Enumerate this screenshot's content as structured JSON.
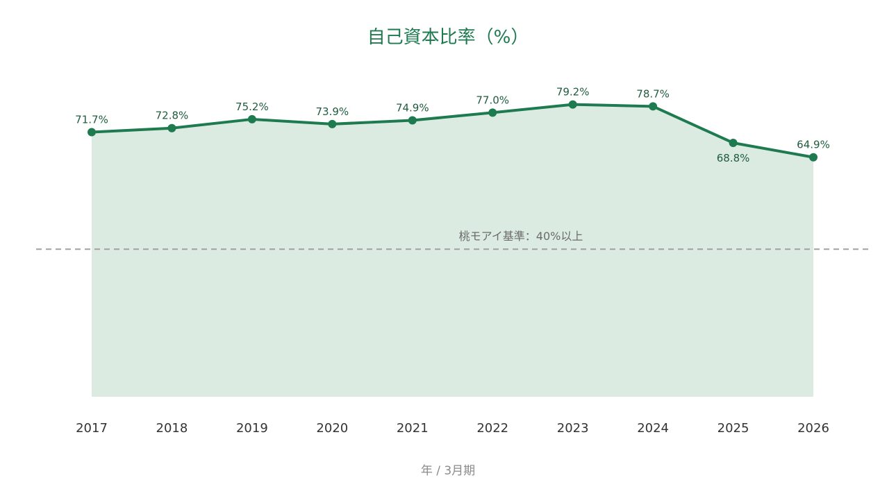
{
  "chart_data": {
    "type": "area",
    "title": "自己資本比率（%）",
    "xlabel": "年 / 3月期",
    "ylabel": "",
    "categories": [
      "2017",
      "2018",
      "2019",
      "2020",
      "2021",
      "2022",
      "2023",
      "2024",
      "2025",
      "2026"
    ],
    "series": [
      {
        "values": [
          71.7,
          72.8,
          75.2,
          73.9,
          74.9,
          77.0,
          79.2,
          78.7,
          68.8,
          64.9
        ],
        "data_labels": [
          "71.7%",
          "72.8%",
          "75.2%",
          "73.9%",
          "74.9%",
          "77.0%",
          "79.2%",
          "78.7%",
          "68.8%",
          "64.9%"
        ]
      }
    ],
    "reference_line": {
      "value": 40,
      "label": "桃モアイ基準：40%以上",
      "style": "dashed"
    },
    "ylim": [
      0,
      100
    ],
    "grid": false,
    "legend": "none",
    "colors": {
      "line": "#1e7a4f",
      "fill": "#dcebe2",
      "marker": "#1e7a4f",
      "reference": "#a0a0a0",
      "title": "#1e7a4f"
    }
  }
}
